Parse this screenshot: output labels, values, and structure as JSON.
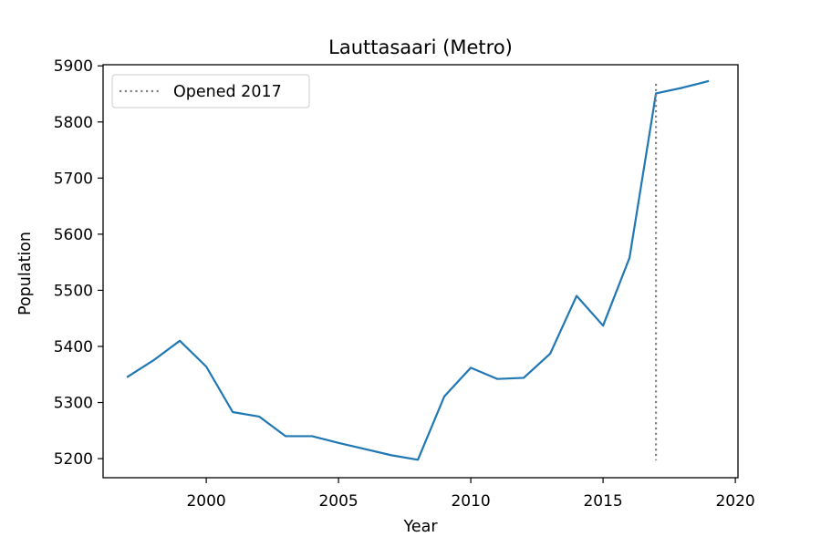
{
  "chart_data": {
    "type": "line",
    "title": "Lauttasaari (Metro)",
    "xlabel": "Year",
    "ylabel": "Population",
    "xlim": [
      1996.1,
      2020.1
    ],
    "ylim": [
      5166,
      5902
    ],
    "xticks": [
      2000,
      2005,
      2010,
      2015,
      2020
    ],
    "yticks": [
      5200,
      5300,
      5400,
      5500,
      5600,
      5700,
      5800,
      5900
    ],
    "grid": false,
    "legend_position": "top-left",
    "series": [
      {
        "color": "#1f77b4",
        "x": [
          1997,
          1998,
          1999,
          2000,
          2001,
          2002,
          2003,
          2004,
          2005,
          2006,
          2007,
          2008,
          2009,
          2010,
          2011,
          2012,
          2013,
          2014,
          2015,
          2016,
          2017,
          2018,
          2019
        ],
        "y": [
          5345,
          5375,
          5410,
          5364,
          5283,
          5275,
          5240,
          5240,
          5228,
          5217,
          5206,
          5198,
          5311,
          5362,
          5342,
          5344,
          5387,
          5490,
          5437,
          5558,
          5851,
          5861,
          5873
        ]
      }
    ],
    "annotations": [
      {
        "label": "Opened 2017",
        "type": "vline",
        "style": "dotted",
        "color": "#808080",
        "x": 2017,
        "y_from": 5197,
        "y_to": 5868
      }
    ]
  }
}
